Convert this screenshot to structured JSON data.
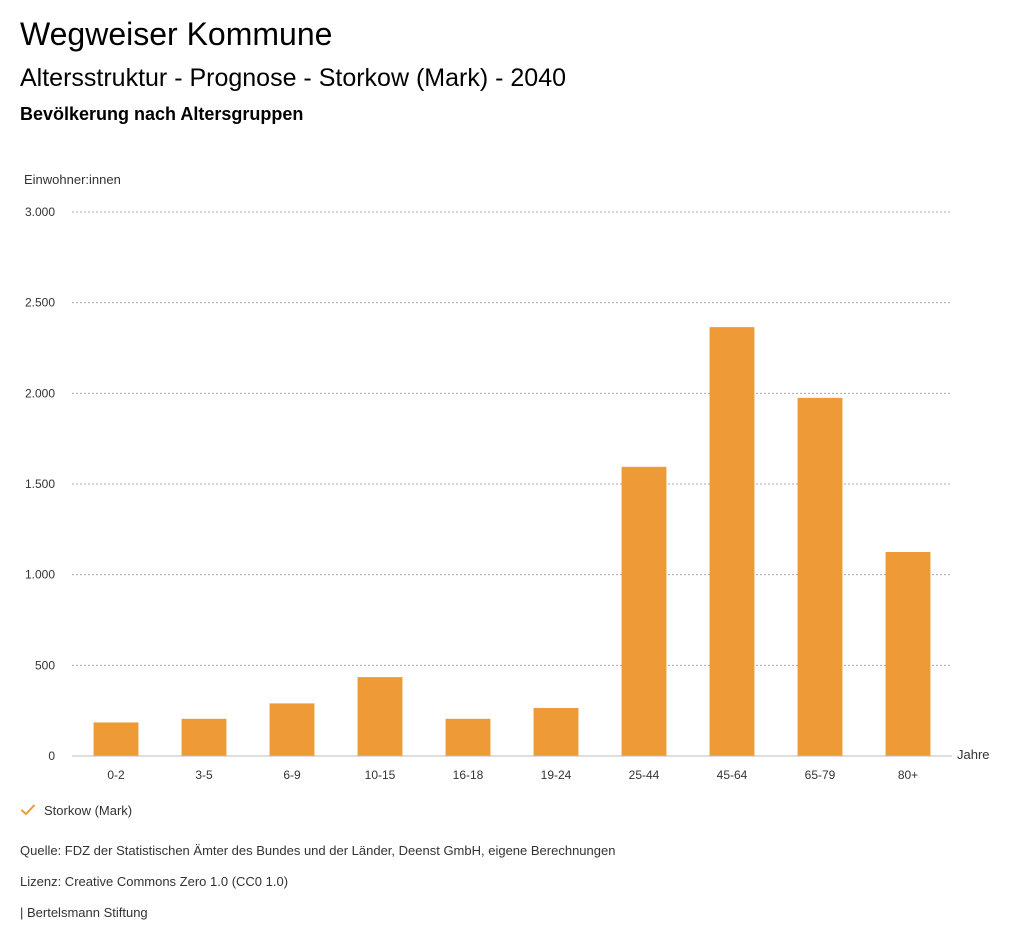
{
  "header": {
    "site_title": "Wegweiser Kommune",
    "chart_title": "Altersstruktur - Prognose - Storkow (Mark) - 2040",
    "chart_subtitle": "Bevölkerung nach Altersgruppen"
  },
  "chart_data": {
    "type": "bar",
    "ylabel": "Einwohner:innen",
    "xlabel": "Jahre",
    "ylim": [
      0,
      3000
    ],
    "y_ticks": [
      0,
      500,
      1000,
      1500,
      2000,
      2500,
      3000
    ],
    "y_tick_labels": [
      "0",
      "500",
      "1.000",
      "1.500",
      "2.000",
      "2.500",
      "3.000"
    ],
    "grid": true,
    "categories": [
      "0-2",
      "3-5",
      "6-9",
      "10-15",
      "16-18",
      "19-24",
      "25-44",
      "45-64",
      "65-79",
      "80+"
    ],
    "series": [
      {
        "name": "Storkow (Mark)",
        "color": "#ED9A37",
        "values": [
          185,
          205,
          290,
          435,
          205,
          265,
          1595,
          2365,
          1975,
          1125
        ]
      }
    ]
  },
  "legend": {
    "items": [
      {
        "label": "Storkow (Mark)",
        "icon": "check-icon",
        "color": "#ED9A37"
      }
    ]
  },
  "footer": {
    "source": "Quelle: FDZ der Statistischen Ämter des Bundes und der Länder, Deenst GmbH, eigene Berechnungen",
    "license": "Lizenz: Creative Commons Zero 1.0 (CC0 1.0)",
    "publisher": "| Bertelsmann Stiftung"
  }
}
